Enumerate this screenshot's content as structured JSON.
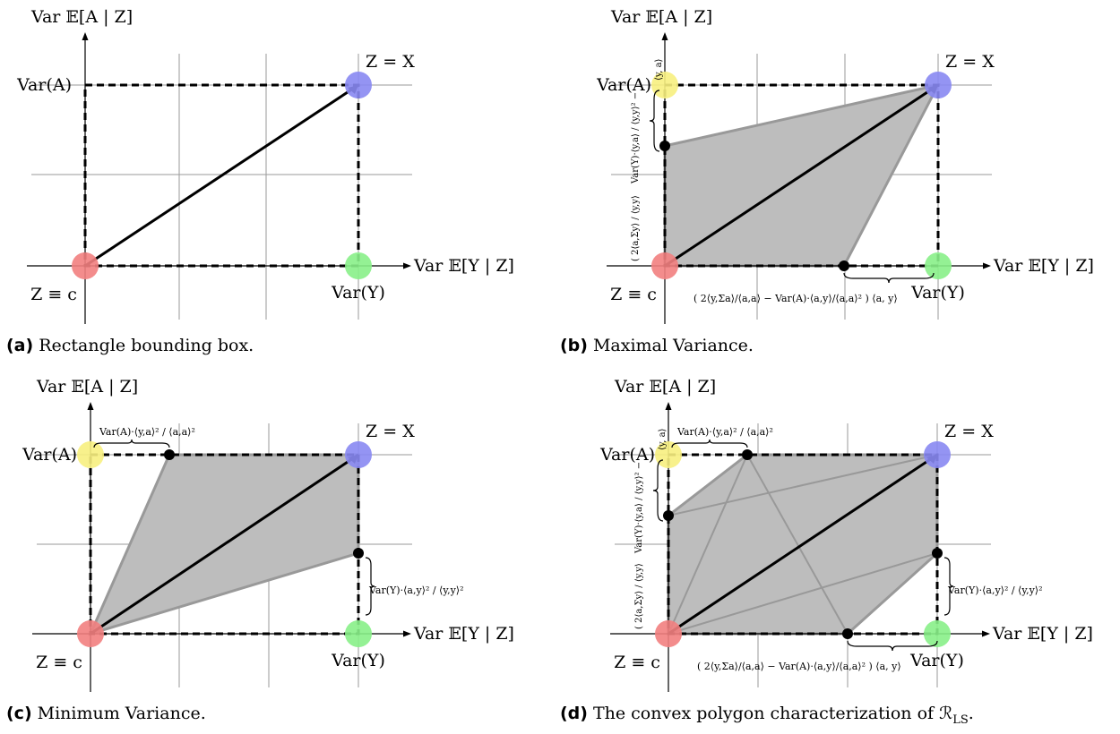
{
  "panels": [
    {
      "id": "a",
      "caption_letter": "(a)",
      "caption_text": "Rectangle bounding box.",
      "y_axis_label": "Var 𝔼[A | Z]",
      "x_axis_label": "Var 𝔼[Y | Z]",
      "corner_var_a": "Var(A)",
      "corner_var_y": "Var(Y)",
      "corner_z_x": "Z = X",
      "corner_z_c": "Z ≡ c",
      "annotations": {}
    },
    {
      "id": "b",
      "caption_letter": "(b)",
      "caption_text": "Maximal Variance.",
      "y_axis_label": "Var 𝔼[A | Z]",
      "x_axis_label": "Var 𝔼[Y | Z]",
      "corner_var_a": "Var(A)",
      "corner_var_y": "Var(Y)",
      "corner_z_x": "Z = X",
      "corner_z_c": "Z ≡ c",
      "annotations": {
        "var_a_sub": "⟨y, a⟩",
        "left_upper": "Var(Y)·⟨y,a⟩ / ⟨y,y⟩² −",
        "left_lower": "( 2⟨a,Σy⟩ / ⟨y,y⟩",
        "bottom_formula": "( 2⟨y,Σa⟩/⟨a,a⟩ − Var(A)·⟨a,y⟩/⟨a,a⟩² ) ⟨a, y⟩"
      }
    },
    {
      "id": "c",
      "caption_letter": "(c)",
      "caption_text": "Minimum Variance.",
      "y_axis_label": "Var 𝔼[A | Z]",
      "x_axis_label": "Var 𝔼[Y | Z]",
      "corner_var_a": "Var(A)",
      "corner_var_y": "Var(Y)",
      "corner_z_x": "Z = X",
      "corner_z_c": "Z ≡ c",
      "annotations": {
        "top_formula": "Var(A)·⟨y,a⟩² / ⟨a,a⟩²",
        "right_formula": "Var(Y)·⟨a,y⟩² / ⟨y,y⟩²"
      }
    },
    {
      "id": "d",
      "caption_letter": "(d)",
      "caption_text": "The convex polygon characterization of ℛ",
      "caption_sub": "LS",
      "y_axis_label": "Var 𝔼[A | Z]",
      "x_axis_label": "Var 𝔼[Y | Z]",
      "corner_var_a": "Var(A)",
      "corner_var_y": "Var(Y)",
      "corner_z_x": "Z = X",
      "corner_z_c": "Z ≡ c",
      "annotations": {
        "var_a_sub": "⟨y, a⟩",
        "top_formula": "Var(A)·⟨y,a⟩² / ⟨a,a⟩²",
        "right_formula": "Var(Y)·⟨a,y⟩² / ⟨y,y⟩²",
        "left_upper": "Var(Y)·⟨y,a⟩ / ⟨y,y⟩² −",
        "left_lower": "( 2⟨a,Σy⟩ / ⟨y,y⟩",
        "bottom_formula": "( 2⟨y,Σa⟩/⟨a,a⟩ − Var(A)·⟨a,y⟩/⟨a,a⟩² ) ⟨a, y⟩"
      }
    }
  ],
  "colors": {
    "red_point": "#f28080",
    "yellow_point": "#f7f080",
    "blue_point": "#8888f2",
    "green_point": "#88f088",
    "region_fill": "#bdbdbd",
    "region_edge": "#999999",
    "grid": "#9a9a9a"
  }
}
